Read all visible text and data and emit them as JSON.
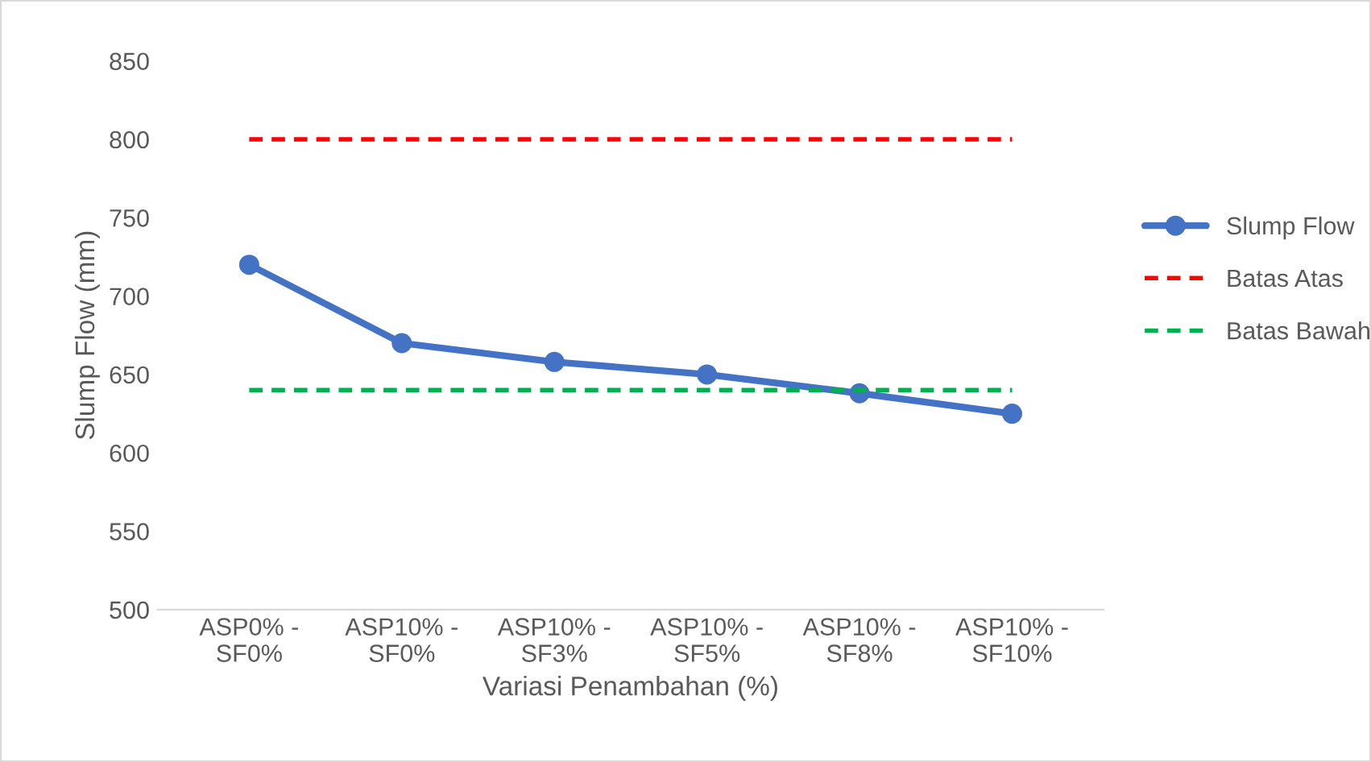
{
  "chart_data": {
    "type": "line",
    "xlabel": "Variasi Penambahan (%)",
    "ylabel": "Slump Flow (mm)",
    "categories": [
      "ASP0% - SF0%",
      "ASP10% - SF0%",
      "ASP10% - SF3%",
      "ASP10% - SF5%",
      "ASP10% - SF8%",
      "ASP10% - SF10%"
    ],
    "series": [
      {
        "name": "Slump Flow",
        "color": "#4472c4",
        "values": [
          720,
          670,
          658,
          650,
          638,
          625
        ],
        "marker": "circle",
        "line_style": "solid"
      },
      {
        "name": "Batas Atas",
        "color": "#ff0000",
        "values": [
          800,
          800,
          800,
          800,
          800,
          800
        ],
        "marker": "none",
        "line_style": "dashed"
      },
      {
        "name": "Batas Bawah",
        "color": "#00b050",
        "values": [
          640,
          640,
          640,
          640,
          640,
          640
        ],
        "marker": "none",
        "line_style": "dashed"
      }
    ],
    "ylim": [
      500,
      850
    ],
    "yticks": [
      500,
      550,
      600,
      650,
      700,
      750,
      800,
      850
    ],
    "grid": false,
    "legend": "right"
  }
}
